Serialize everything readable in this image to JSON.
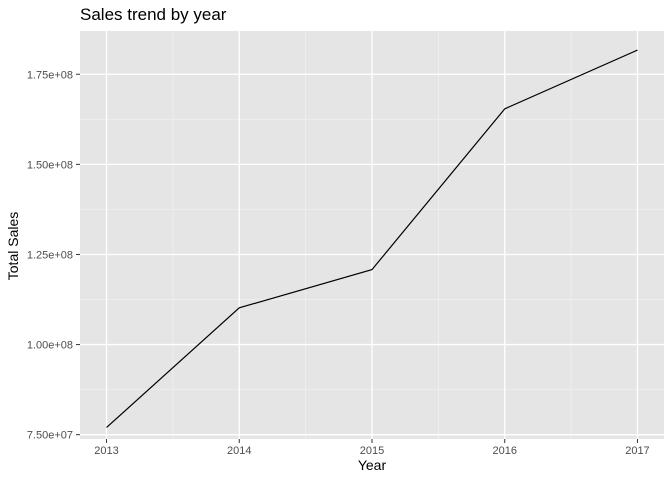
{
  "chart_data": {
    "type": "line",
    "title": "Sales trend by year",
    "xlabel": "Year",
    "ylabel": "Total Sales",
    "x": [
      2013,
      2014,
      2015,
      2016,
      2017
    ],
    "series": [
      {
        "values": [
          77000000,
          110200000,
          120800000,
          165400000,
          181700000
        ]
      }
    ],
    "x_ticks": [
      2013,
      2014,
      2015,
      2016,
      2017
    ],
    "x_tick_labels": [
      "2013",
      "2014",
      "2015",
      "2016",
      "2017"
    ],
    "y_ticks": [
      75000000,
      100000000,
      125000000,
      150000000,
      175000000
    ],
    "y_tick_labels": [
      "7.50e+07",
      "1.00e+08",
      "1.25e+08",
      "1.50e+08",
      "1.75e+08"
    ],
    "xlim": [
      2012.8,
      2017.2
    ],
    "ylim": [
      73800000,
      187000000
    ],
    "grid": true,
    "legend": "none",
    "colors": {
      "panel_background": "#e5e5e5",
      "grid_major": "#ffffff",
      "grid_minor": "#f0f0f0",
      "line": "#000000",
      "tick_mark": "#333333"
    }
  }
}
